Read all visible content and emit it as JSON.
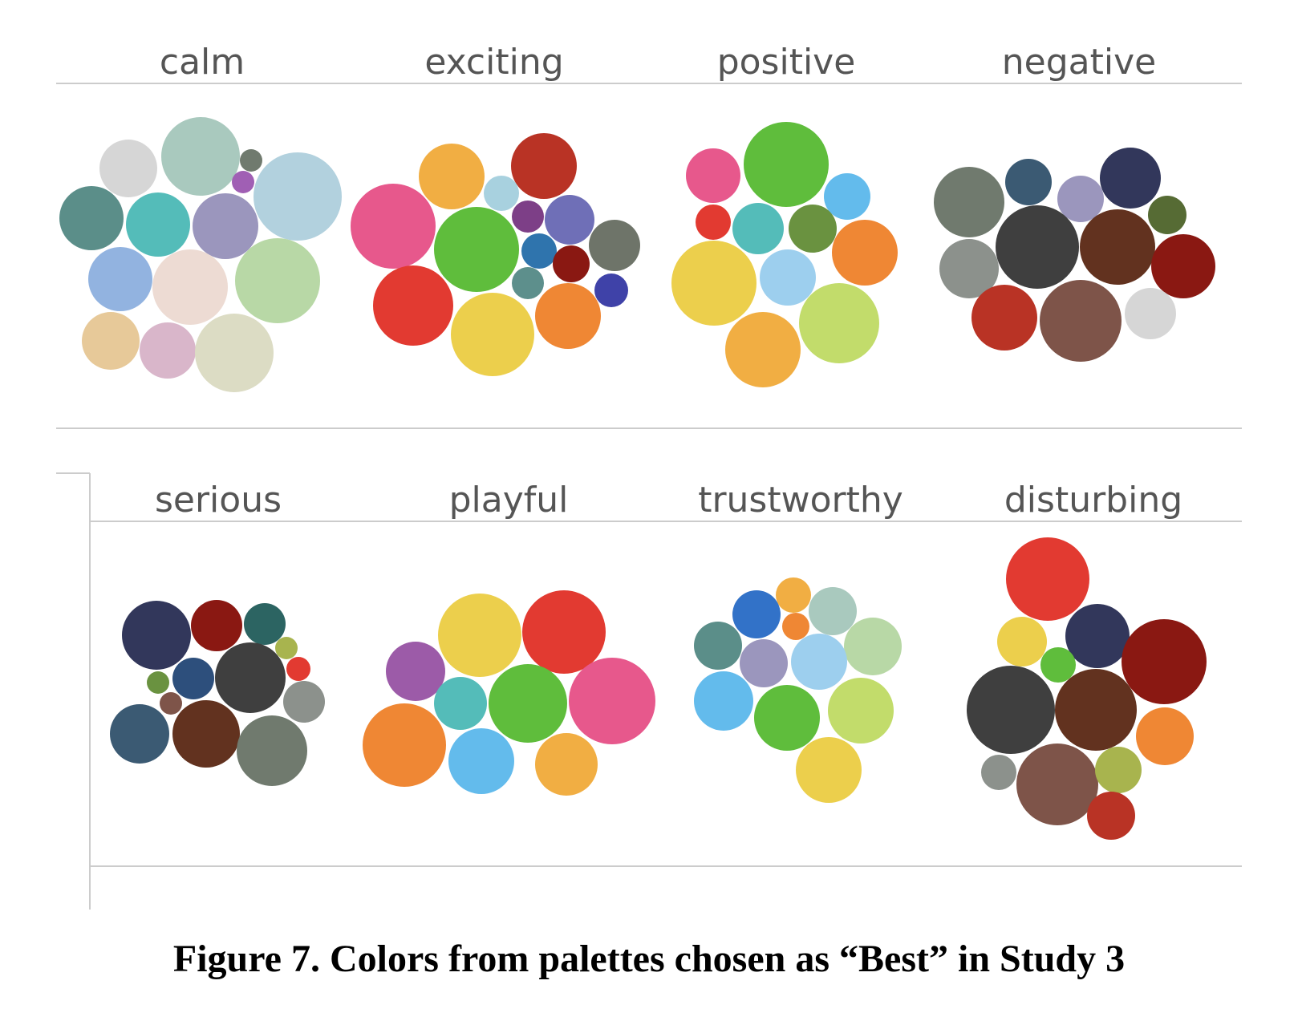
{
  "caption": "Figure 7. Colors from palettes chosen as “Best” in Study 3",
  "chart_data": [
    {
      "type": "bubble-palette",
      "label": "calm",
      "colors": [
        "#d6d6d6",
        "#a9c9be",
        "#707a6e",
        "#a05fb4",
        "#b2d1de",
        "#5b8e89",
        "#54bcb9",
        "#9b96bd",
        "#92b3e0",
        "#eddbd3",
        "#b8d8a6",
        "#e7c999",
        "#d9b6ca",
        "#dcdcc4"
      ]
    },
    {
      "type": "bubble-palette",
      "label": "exciting",
      "colors": [
        "#f1ae43",
        "#b93325",
        "#a8d1df",
        "#e7588c",
        "#7d3f87",
        "#6f6fb7",
        "#5fbd3c",
        "#2f74ad",
        "#6e7469",
        "#8a1812",
        "#5d8f8c",
        "#3f42a8",
        "#e23a31",
        "#eccf4c",
        "#ef8734"
      ]
    },
    {
      "type": "bubble-palette",
      "label": "positive",
      "colors": [
        "#e7588c",
        "#5fbd3c",
        "#63bbec",
        "#e23a31",
        "#54bcb9",
        "#6a9240",
        "#ef8734",
        "#eccf4c",
        "#9dcfee",
        "#c2dc6b",
        "#f1ae43"
      ]
    },
    {
      "type": "bubble-palette",
      "label": "negative",
      "colors": [
        "#707a6e",
        "#3b5a73",
        "#9b96bd",
        "#32375b",
        "#566b34",
        "#3f3f3f",
        "#62321f",
        "#8a1812",
        "#8c918c",
        "#b93325",
        "#7e5449",
        "#d6d6d6"
      ]
    },
    {
      "type": "bubble-palette",
      "label": "serious",
      "colors": [
        "#32375b",
        "#8a1812",
        "#2c6462",
        "#a8b44e",
        "#2d4f7c",
        "#3f3f3f",
        "#e23a31",
        "#6a9240",
        "#7e5449",
        "#8c918c",
        "#3b5a73",
        "#62321f",
        "#707a6e"
      ]
    },
    {
      "type": "bubble-palette",
      "label": "playful",
      "colors": [
        "#eccf4c",
        "#e23a31",
        "#9c5ba8",
        "#54bcb9",
        "#5fbd3c",
        "#e7588c",
        "#ef8734",
        "#63bbec",
        "#f1ae43"
      ]
    },
    {
      "type": "bubble-palette",
      "label": "trustworthy",
      "colors": [
        "#f1ae43",
        "#3272c8",
        "#a9c9be",
        "#ef8734",
        "#5b8e89",
        "#b8d8a6",
        "#9b96bd",
        "#9dcfee",
        "#63bbec",
        "#5fbd3c",
        "#c2dc6b",
        "#eccf4c"
      ]
    },
    {
      "type": "bubble-palette",
      "label": "disturbing",
      "colors": [
        "#e23a31",
        "#eccf4c",
        "#32375b",
        "#5fbd3c",
        "#8a1812",
        "#3f3f3f",
        "#62321f",
        "#ef8734",
        "#8c918c",
        "#7e5449",
        "#a8b44e",
        "#b93325"
      ]
    }
  ]
}
